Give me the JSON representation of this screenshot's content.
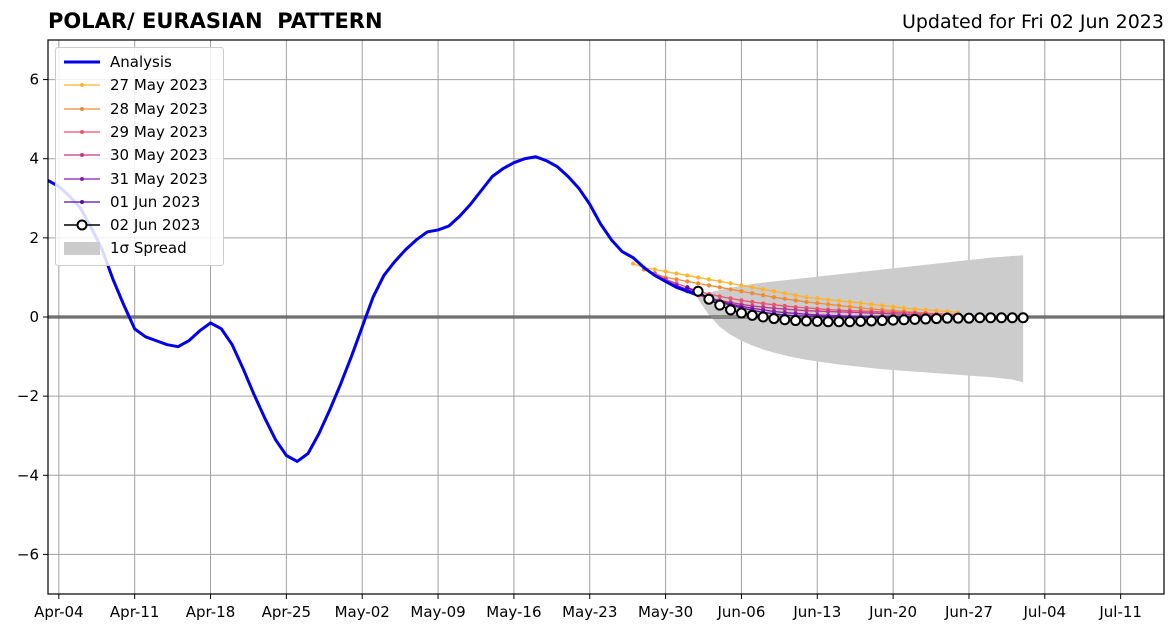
{
  "header": {
    "title": "POLAR/ EURASIAN  PATTERN",
    "updated": "Updated for Fri 02 Jun 2023"
  },
  "chart_data": {
    "type": "line",
    "x_axis": {
      "type": "date",
      "range": [
        "2023-04-03",
        "2023-07-15"
      ],
      "tick_dates": [
        "2023-04-04",
        "2023-04-11",
        "2023-04-18",
        "2023-04-25",
        "2023-05-02",
        "2023-05-09",
        "2023-05-16",
        "2023-05-23",
        "2023-05-30",
        "2023-06-06",
        "2023-06-13",
        "2023-06-20",
        "2023-06-27",
        "2023-07-04",
        "2023-07-11"
      ],
      "tick_labels": [
        "Apr-04",
        "Apr-11",
        "Apr-18",
        "Apr-25",
        "May-02",
        "May-09",
        "May-16",
        "May-23",
        "May-30",
        "Jun-06",
        "Jun-13",
        "Jun-20",
        "Jun-27",
        "Jul-04",
        "Jul-11"
      ]
    },
    "y_axis": {
      "range": [
        -7,
        7
      ],
      "ticks": [
        -6,
        -4,
        -2,
        0,
        2,
        4,
        6
      ],
      "tick_labels": [
        "−6",
        "−4",
        "−2",
        "0",
        "2",
        "4",
        "6"
      ]
    },
    "grid": true,
    "legend_position": "top-left",
    "zero_line": true,
    "series": [
      {
        "name": "Analysis",
        "color": "#0000ee",
        "style": "thick-line",
        "points": [
          [
            "2023-04-03",
            3.45
          ],
          [
            "2023-04-04",
            3.3
          ],
          [
            "2023-04-05",
            3.05
          ],
          [
            "2023-04-06",
            2.75
          ],
          [
            "2023-04-07",
            2.25
          ],
          [
            "2023-04-08",
            1.7
          ],
          [
            "2023-04-09",
            0.95
          ],
          [
            "2023-04-10",
            0.3
          ],
          [
            "2023-04-11",
            -0.3
          ],
          [
            "2023-04-12",
            -0.5
          ],
          [
            "2023-04-13",
            -0.6
          ],
          [
            "2023-04-14",
            -0.7
          ],
          [
            "2023-04-15",
            -0.75
          ],
          [
            "2023-04-16",
            -0.6
          ],
          [
            "2023-04-17",
            -0.35
          ],
          [
            "2023-04-18",
            -0.15
          ],
          [
            "2023-04-19",
            -0.3
          ],
          [
            "2023-04-20",
            -0.7
          ],
          [
            "2023-04-21",
            -1.3
          ],
          [
            "2023-04-22",
            -1.95
          ],
          [
            "2023-04-23",
            -2.55
          ],
          [
            "2023-04-24",
            -3.1
          ],
          [
            "2023-04-25",
            -3.5
          ],
          [
            "2023-04-26",
            -3.65
          ],
          [
            "2023-04-27",
            -3.45
          ],
          [
            "2023-04-28",
            -2.95
          ],
          [
            "2023-04-29",
            -2.35
          ],
          [
            "2023-04-30",
            -1.7
          ],
          [
            "2023-05-01",
            -1.0
          ],
          [
            "2023-05-02",
            -0.25
          ],
          [
            "2023-05-03",
            0.5
          ],
          [
            "2023-05-04",
            1.05
          ],
          [
            "2023-05-05",
            1.4
          ],
          [
            "2023-05-06",
            1.7
          ],
          [
            "2023-05-07",
            1.95
          ],
          [
            "2023-05-08",
            2.15
          ],
          [
            "2023-05-09",
            2.2
          ],
          [
            "2023-05-10",
            2.3
          ],
          [
            "2023-05-11",
            2.55
          ],
          [
            "2023-05-12",
            2.85
          ],
          [
            "2023-05-13",
            3.2
          ],
          [
            "2023-05-14",
            3.55
          ],
          [
            "2023-05-15",
            3.75
          ],
          [
            "2023-05-16",
            3.9
          ],
          [
            "2023-05-17",
            4.0
          ],
          [
            "2023-05-18",
            4.05
          ],
          [
            "2023-05-19",
            3.95
          ],
          [
            "2023-05-20",
            3.8
          ],
          [
            "2023-05-21",
            3.55
          ],
          [
            "2023-05-22",
            3.25
          ],
          [
            "2023-05-23",
            2.85
          ],
          [
            "2023-05-24",
            2.35
          ],
          [
            "2023-05-25",
            1.95
          ],
          [
            "2023-05-26",
            1.65
          ],
          [
            "2023-05-27",
            1.5
          ],
          [
            "2023-05-28",
            1.25
          ],
          [
            "2023-05-29",
            1.05
          ],
          [
            "2023-05-30",
            0.9
          ],
          [
            "2023-05-31",
            0.75
          ],
          [
            "2023-06-01",
            0.65
          ],
          [
            "2023-06-02",
            0.55
          ]
        ]
      },
      {
        "name": "27 May 2023",
        "color": "#ffb22c",
        "style": "small-dots",
        "start": "2023-05-27",
        "values": [
          1.35,
          1.25,
          1.2,
          1.15,
          1.1,
          1.05,
          1.0,
          0.95,
          0.9,
          0.85,
          0.8,
          0.75,
          0.7,
          0.65,
          0.6,
          0.55,
          0.5,
          0.47,
          0.44,
          0.41,
          0.38,
          0.35,
          0.32,
          0.29,
          0.26,
          0.23,
          0.2,
          0.18,
          0.16,
          0.14,
          0.12
        ]
      },
      {
        "name": "28 May 2023",
        "color": "#f28a30",
        "style": "small-dots",
        "start": "2023-05-28",
        "values": [
          1.2,
          1.1,
          1.0,
          0.95,
          0.9,
          0.85,
          0.8,
          0.75,
          0.7,
          0.65,
          0.6,
          0.55,
          0.5,
          0.46,
          0.42,
          0.38,
          0.35,
          0.32,
          0.29,
          0.26,
          0.23,
          0.2,
          0.18,
          0.16,
          0.14,
          0.12,
          0.1,
          0.08,
          0.07,
          0.06
        ]
      },
      {
        "name": "29 May 2023",
        "color": "#e8556e",
        "style": "small-dots",
        "start": "2023-05-29",
        "values": [
          1.1,
          0.95,
          0.85,
          0.75,
          0.65,
          0.58,
          0.52,
          0.47,
          0.42,
          0.38,
          0.34,
          0.31,
          0.28,
          0.25,
          0.23,
          0.21,
          0.19,
          0.17,
          0.16,
          0.15,
          0.14,
          0.13,
          0.12,
          0.11,
          0.1,
          0.09,
          0.08,
          0.07,
          0.06
        ]
      },
      {
        "name": "30 May 2023",
        "color": "#c2398b",
        "style": "small-dots",
        "start": "2023-05-30",
        "values": [
          0.95,
          0.8,
          0.65,
          0.55,
          0.48,
          0.42,
          0.37,
          0.32,
          0.28,
          0.25,
          0.22,
          0.2,
          0.18,
          0.16,
          0.15,
          0.14,
          0.13,
          0.12,
          0.11,
          0.1,
          0.09,
          0.08,
          0.07,
          0.06,
          0.05,
          0.04,
          0.03,
          0.03
        ]
      },
      {
        "name": "31 May 2023",
        "color": "#8b1aa8",
        "style": "small-dots",
        "start": "2023-05-31",
        "values": [
          0.8,
          0.7,
          0.58,
          0.48,
          0.4,
          0.33,
          0.27,
          0.22,
          0.18,
          0.14,
          0.11,
          0.09,
          0.07,
          0.05,
          0.04,
          0.03,
          0.02,
          0.02,
          0.01,
          0.01,
          0.01,
          0.0,
          0.0,
          0.0,
          0.0,
          0.0,
          0.0
        ]
      },
      {
        "name": "01 Jun 2023",
        "color": "#5a0ca8",
        "style": "small-dots",
        "start": "2023-06-01",
        "values": [
          0.75,
          0.6,
          0.48,
          0.38,
          0.3,
          0.23,
          0.17,
          0.12,
          0.08,
          0.05,
          0.03,
          0.02,
          0.01,
          0.0,
          0.0,
          0.0,
          0.0,
          0.0,
          0.0,
          0.0,
          0.0,
          0.0,
          0.0,
          0.0,
          0.0,
          0.0
        ]
      },
      {
        "name": "02 Jun 2023",
        "color": "#000000",
        "style": "open-circles",
        "start": "2023-06-02",
        "values": [
          0.65,
          0.45,
          0.3,
          0.18,
          0.1,
          0.04,
          0.0,
          -0.04,
          -0.07,
          -0.09,
          -0.1,
          -0.11,
          -0.12,
          -0.12,
          -0.12,
          -0.11,
          -0.1,
          -0.09,
          -0.08,
          -0.07,
          -0.06,
          -0.05,
          -0.04,
          -0.03,
          -0.03,
          -0.03,
          -0.02,
          -0.02,
          -0.02,
          -0.02,
          -0.02
        ]
      }
    ],
    "spread": {
      "name": "1σ Spread",
      "color": "#cccccc",
      "start": "2023-06-02",
      "end": "2023-07-02",
      "upper": [
        0.55,
        0.62,
        0.68,
        0.74,
        0.79,
        0.83,
        0.87,
        0.9,
        0.93,
        0.96,
        0.99,
        1.02,
        1.05,
        1.08,
        1.11,
        1.14,
        1.17,
        1.2,
        1.23,
        1.26,
        1.29,
        1.32,
        1.35,
        1.38,
        1.41,
        1.44,
        1.47,
        1.5,
        1.52,
        1.54,
        1.56
      ],
      "lower": [
        0.45,
        0.05,
        -0.25,
        -0.45,
        -0.6,
        -0.72,
        -0.82,
        -0.9,
        -0.97,
        -1.03,
        -1.08,
        -1.12,
        -1.16,
        -1.2,
        -1.23,
        -1.26,
        -1.29,
        -1.32,
        -1.34,
        -1.36,
        -1.38,
        -1.4,
        -1.42,
        -1.44,
        -1.46,
        -1.48,
        -1.5,
        -1.52,
        -1.55,
        -1.58,
        -1.65
      ]
    }
  },
  "legend": [
    {
      "label": "Analysis",
      "color": "#0000ee",
      "kind": "thick"
    },
    {
      "label": "27 May 2023",
      "color": "#ffb22c",
      "kind": "dot"
    },
    {
      "label": "28 May 2023",
      "color": "#f28a30",
      "kind": "dot"
    },
    {
      "label": "29 May 2023",
      "color": "#e8556e",
      "kind": "dot"
    },
    {
      "label": "30 May 2023",
      "color": "#c2398b",
      "kind": "dot"
    },
    {
      "label": "31 May 2023",
      "color": "#8b1aa8",
      "kind": "dot"
    },
    {
      "label": "01 Jun 2023",
      "color": "#5a0ca8",
      "kind": "dot"
    },
    {
      "label": "02 Jun 2023",
      "color": "#000000",
      "kind": "circle"
    },
    {
      "label": "1σ Spread",
      "color": "#cccccc",
      "kind": "patch"
    }
  ]
}
